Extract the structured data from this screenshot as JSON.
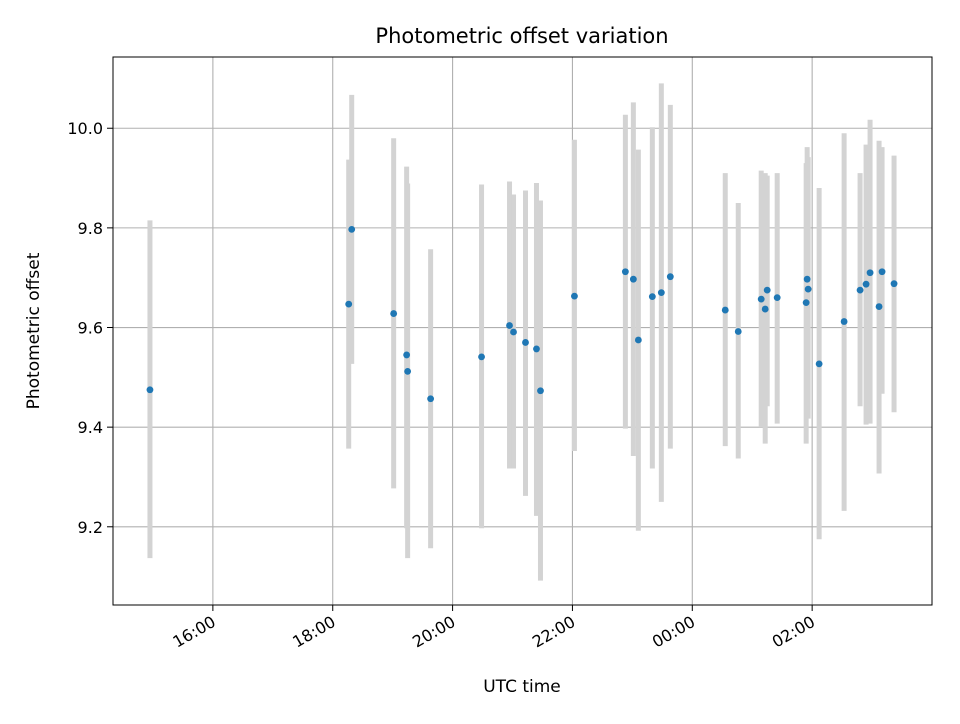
{
  "chart_data": {
    "type": "scatter",
    "title": "Photometric offset variation",
    "xlabel": "UTC time",
    "ylabel": "Photometric offset",
    "x_scale": "datetime",
    "xlim": [
      "14:20",
      "04:00"
    ],
    "ylim": [
      9.043,
      10.143
    ],
    "x_ticks": [
      "16:00",
      "18:00",
      "20:00",
      "22:00",
      "00:00",
      "02:00"
    ],
    "y_ticks": [
      "9.2",
      "9.4",
      "9.6",
      "9.8",
      "10.0"
    ],
    "grid": true,
    "legend": "none",
    "colors": {
      "points": "#1f77b4",
      "error_bars": "#d3d3d3",
      "grid": "#b0b0b0"
    },
    "series": [
      {
        "points": [
          {
            "x": "14:57",
            "y": 9.475,
            "err_low": 9.137,
            "err_high": 9.815
          },
          {
            "x": "18:16",
            "y": 9.647,
            "err_low": 9.357,
            "err_high": 9.937
          },
          {
            "x": "18:19",
            "y": 9.797,
            "err_low": 9.527,
            "err_high": 10.067
          },
          {
            "x": "19:01",
            "y": 9.628,
            "err_low": 9.277,
            "err_high": 9.98
          },
          {
            "x": "19:14",
            "y": 9.545,
            "err_low": 9.197,
            "err_high": 9.923
          },
          {
            "x": "19:15",
            "y": 9.512,
            "err_low": 9.137,
            "err_high": 9.889
          },
          {
            "x": "19:38",
            "y": 9.457,
            "err_low": 9.157,
            "err_high": 9.757
          },
          {
            "x": "20:29",
            "y": 9.541,
            "err_low": 9.197,
            "err_high": 9.887
          },
          {
            "x": "20:57",
            "y": 9.604,
            "err_low": 9.317,
            "err_high": 9.893
          },
          {
            "x": "21:01",
            "y": 9.591,
            "err_low": 9.317,
            "err_high": 9.867
          },
          {
            "x": "21:13",
            "y": 9.57,
            "err_low": 9.262,
            "err_high": 9.875
          },
          {
            "x": "21:24",
            "y": 9.557,
            "err_low": 9.222,
            "err_high": 9.89
          },
          {
            "x": "21:28",
            "y": 9.473,
            "err_low": 9.092,
            "err_high": 9.855
          },
          {
            "x": "22:02",
            "y": 9.663,
            "err_low": 9.352,
            "err_high": 9.977
          },
          {
            "x": "22:53",
            "y": 9.712,
            "err_low": 9.397,
            "err_high": 10.027
          },
          {
            "x": "23:01",
            "y": 9.697,
            "err_low": 9.342,
            "err_high": 10.052
          },
          {
            "x": "23:06",
            "y": 9.575,
            "err_low": 9.192,
            "err_high": 9.957
          },
          {
            "x": "23:20",
            "y": 9.662,
            "err_low": 9.317,
            "err_high": 10.002
          },
          {
            "x": "23:29",
            "y": 9.67,
            "err_low": 9.25,
            "err_high": 10.09
          },
          {
            "x": "23:38",
            "y": 9.702,
            "err_low": 9.357,
            "err_high": 10.047
          },
          {
            "x": "00:33",
            "y": 9.635,
            "err_low": 9.362,
            "err_high": 9.91
          },
          {
            "x": "00:46",
            "y": 9.592,
            "err_low": 9.337,
            "err_high": 9.85
          },
          {
            "x": "01:09",
            "y": 9.657,
            "err_low": 9.4,
            "err_high": 9.915
          },
          {
            "x": "01:13",
            "y": 9.637,
            "err_low": 9.367,
            "err_high": 9.91
          },
          {
            "x": "01:15",
            "y": 9.675,
            "err_low": 9.442,
            "err_high": 9.905
          },
          {
            "x": "01:25",
            "y": 9.66,
            "err_low": 9.407,
            "err_high": 9.91
          },
          {
            "x": "01:54",
            "y": 9.65,
            "err_low": 9.367,
            "err_high": 9.93
          },
          {
            "x": "01:55",
            "y": 9.697,
            "err_low": 9.43,
            "err_high": 9.962
          },
          {
            "x": "01:56",
            "y": 9.677,
            "err_low": 9.417,
            "err_high": 9.942
          },
          {
            "x": "02:07",
            "y": 9.527,
            "err_low": 9.175,
            "err_high": 9.88
          },
          {
            "x": "02:32",
            "y": 9.612,
            "err_low": 9.232,
            "err_high": 9.99
          },
          {
            "x": "02:48",
            "y": 9.675,
            "err_low": 9.442,
            "err_high": 9.91
          },
          {
            "x": "02:54",
            "y": 9.687,
            "err_low": 9.405,
            "err_high": 9.967
          },
          {
            "x": "02:58",
            "y": 9.71,
            "err_low": 9.407,
            "err_high": 10.017
          },
          {
            "x": "03:07",
            "y": 9.642,
            "err_low": 9.307,
            "err_high": 9.975
          },
          {
            "x": "03:10",
            "y": 9.712,
            "err_low": 9.467,
            "err_high": 9.962
          },
          {
            "x": "03:22",
            "y": 9.688,
            "err_low": 9.43,
            "err_high": 9.945
          }
        ]
      }
    ]
  }
}
